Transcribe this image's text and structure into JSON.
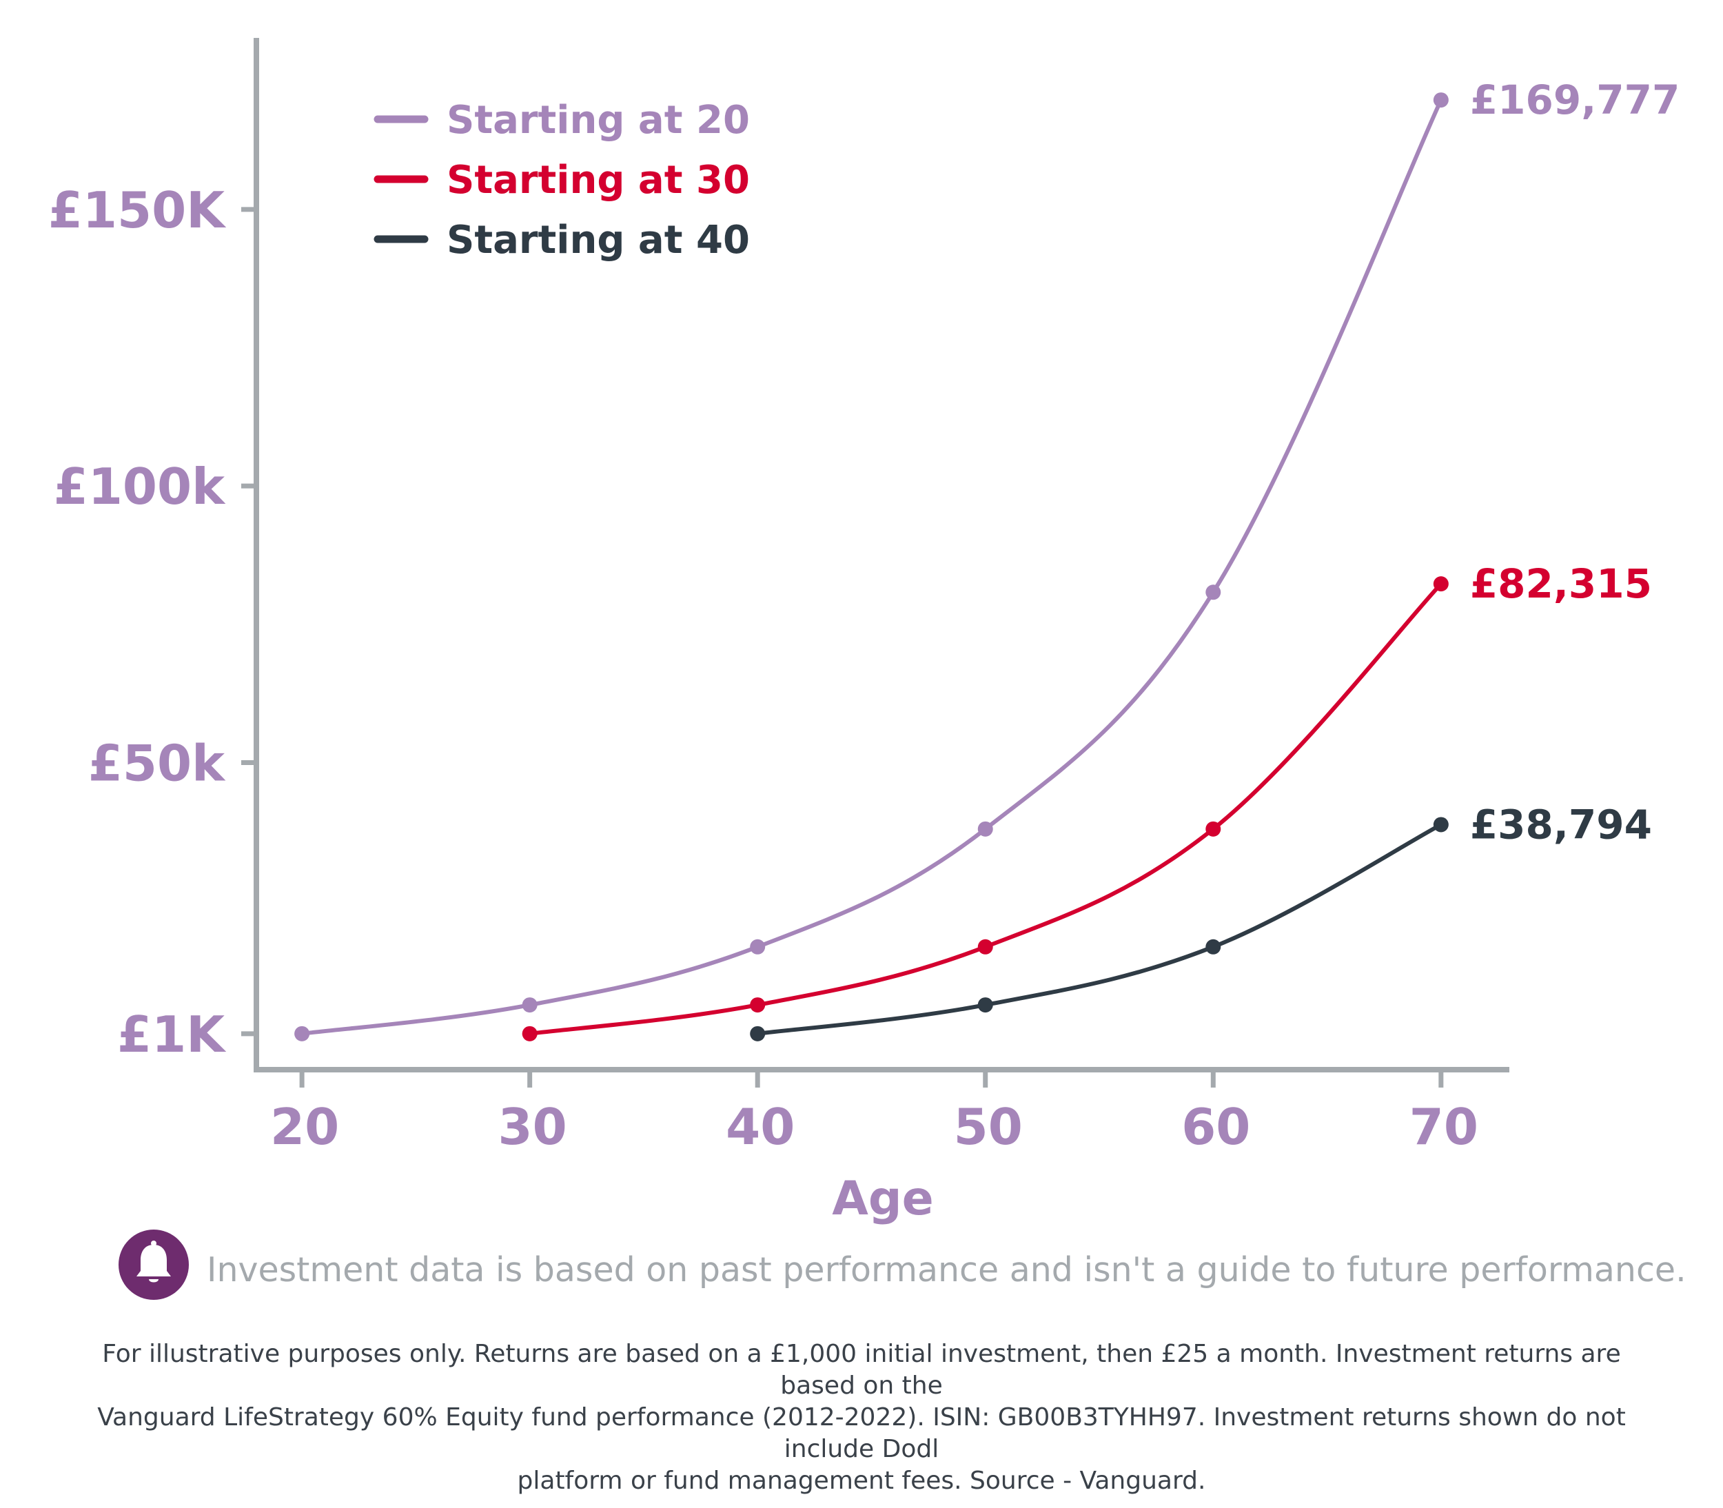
{
  "chart_data": {
    "type": "line",
    "title": "",
    "xlabel": "Age",
    "ylabel": "",
    "x_ticks": [
      20,
      30,
      40,
      50,
      60,
      70
    ],
    "y_ticks": [
      {
        "value": 1000,
        "label": "£1K"
      },
      {
        "value": 50000,
        "label": "£50k"
      },
      {
        "value": 100000,
        "label": "£100k"
      },
      {
        "value": 150000,
        "label": "£150K"
      }
    ],
    "xlim": [
      18,
      73
    ],
    "ylim": [
      -5500,
      181000
    ],
    "grid": false,
    "legend_position": "top-left",
    "series": [
      {
        "name": "Starting at 20",
        "color": "#a585b9",
        "x": [
          20,
          30,
          40,
          50,
          60,
          70
        ],
        "y": [
          1000,
          6200,
          16700,
          38000,
          80800,
          169777
        ],
        "end_label": "£169,777"
      },
      {
        "name": "Starting at 30",
        "color": "#d4002f",
        "x": [
          30,
          40,
          50,
          60,
          70
        ],
        "y": [
          1000,
          6200,
          16700,
          38000,
          82315
        ],
        "end_label": "£82,315"
      },
      {
        "name": "Starting at 40",
        "color": "#2f3b45",
        "x": [
          40,
          50,
          60,
          70
        ],
        "y": [
          1000,
          6200,
          16700,
          38794
        ],
        "end_label": "£38,794"
      }
    ],
    "colors": {
      "axis": "#a4a9ad",
      "tick_label": "#a585b9"
    }
  },
  "disclaimer": {
    "icon": "bell-icon",
    "text": "Investment data is based on past performance and isn't a guide to future performance."
  },
  "footnote": {
    "lines": [
      "For illustrative purposes only. Returns are based on a £1,000 initial investment, then £25 a month. Investment returns are based on the",
      "Vanguard LifeStrategy 60% Equity fund performance (2012-2022). ISIN: GB00B3TYHH97. Investment returns shown do not include Dodl",
      "platform or fund management fees. Source - Vanguard."
    ]
  }
}
